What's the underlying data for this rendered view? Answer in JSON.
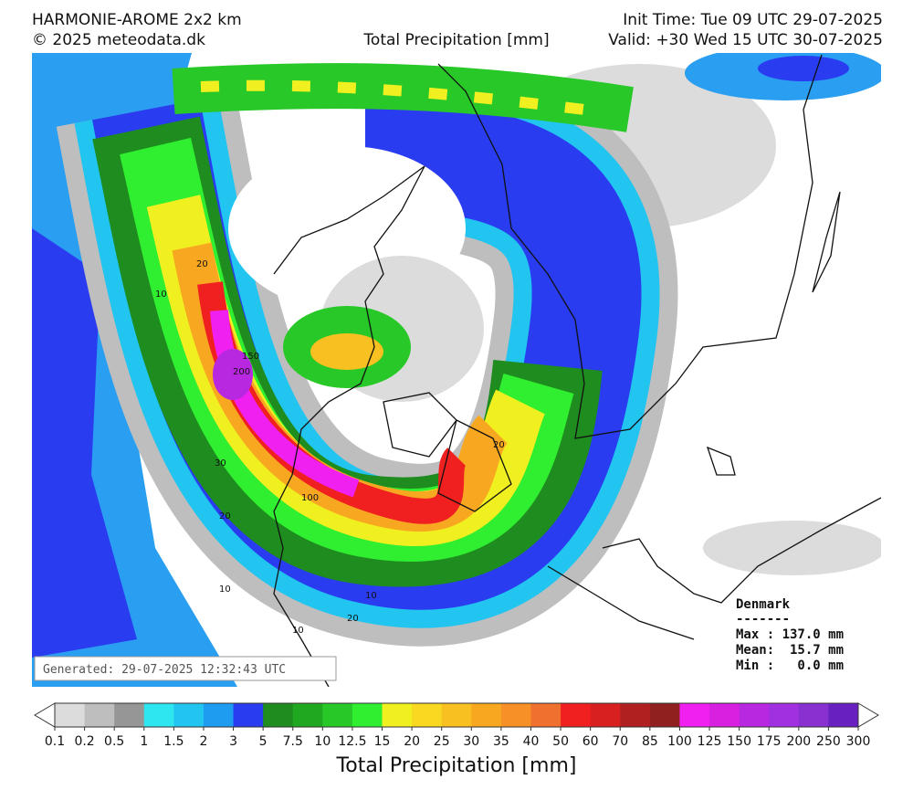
{
  "header": {
    "model": "HARMONIE-AROME 2x2 km",
    "copyright": "© 2025 meteodata.dk",
    "title": "Total Precipitation [mm]",
    "init_time": "Init Time: Tue 09 UTC 29-07-2025",
    "valid_time": "Valid: +30 Wed 15 UTC 30-07-2025"
  },
  "map": {
    "contour_labels": [
      "20",
      "10",
      "200",
      "150",
      "100",
      "30",
      "20",
      "10",
      "10",
      "20",
      "10",
      "20"
    ]
  },
  "stats": {
    "region": "Denmark",
    "separator": "-------",
    "max": "Max : 137.0 mm",
    "mean": "Mean:  15.7 mm",
    "min": "Min :   0.0 mm"
  },
  "generated": "Generated: 29-07-2025 12:32:43 UTC",
  "colorbar": {
    "title": "Total Precipitation [mm]",
    "ticks": [
      "0.1",
      "0.2",
      "0.5",
      "1",
      "1.5",
      "2",
      "3",
      "5",
      "7.5",
      "10",
      "12.5",
      "15",
      "20",
      "25",
      "30",
      "35",
      "40",
      "50",
      "60",
      "70",
      "85",
      "100",
      "125",
      "150",
      "175",
      "200",
      "250",
      "300"
    ],
    "colors": [
      "#dcdcdc",
      "#bebebe",
      "#969696",
      "#2ee6f0",
      "#22c4f0",
      "#1e9cf0",
      "#2a3cf0",
      "#1e8c1e",
      "#20a820",
      "#28c828",
      "#30ee30",
      "#f0f020",
      "#f8d820",
      "#f8c020",
      "#f8a820",
      "#f89028",
      "#f07030",
      "#f02020",
      "#d82020",
      "#b02020",
      "#902020",
      "#f020f0",
      "#d820e0",
      "#b828e0",
      "#a030e0",
      "#8830d0",
      "#6820c0"
    ]
  }
}
